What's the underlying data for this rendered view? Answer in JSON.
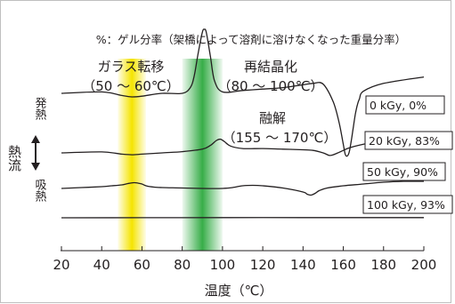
{
  "chart_data": {
    "type": "line",
    "title": "%：ゲル分率（架橋によって溶剤に溶けなくなった重量分率）",
    "xlabel": "温度（℃）",
    "ylabel": "熱流",
    "y_top_label": "発熱",
    "y_bottom_label": "吸熱",
    "xlim": [
      20,
      200
    ],
    "xticks": [
      "20",
      "40",
      "60",
      "80",
      "100",
      "120",
      "140",
      "160",
      "180",
      "200"
    ],
    "grid": false,
    "bands": [
      {
        "name": "ガラス転移",
        "range_label": "（50 ～ 60℃）",
        "x_range": [
          48,
          62
        ],
        "color": "#f5e400"
      },
      {
        "name": "再結晶化",
        "range_label": "（80 ～ 100℃）",
        "x_range": [
          80,
          100
        ],
        "color": "#37ad48"
      }
    ],
    "annotations": [
      {
        "text": "融解",
        "subtext": "（155 ～ 170℃）"
      }
    ],
    "series": [
      {
        "name": "0 kGy, 0%",
        "x": [
          20,
          40,
          50,
          55,
          60,
          70,
          80,
          84,
          86,
          88,
          90,
          91,
          92,
          94,
          96,
          100,
          110,
          120,
          130,
          140,
          145,
          150,
          155,
          158,
          160,
          161,
          162,
          163,
          164,
          165,
          166,
          167,
          168,
          170,
          180,
          200
        ],
        "y": [
          0,
          0.2,
          -0.3,
          -0.5,
          -0.4,
          0,
          0,
          0.8,
          2.5,
          5.8,
          8.6,
          9.0,
          8.5,
          5.2,
          1.8,
          0.2,
          0.4,
          0.6,
          0.8,
          1.2,
          1.4,
          1.3,
          -1.2,
          -4.2,
          -7.2,
          -8.6,
          -8.8,
          -8.2,
          -6.6,
          -4.7,
          -2.9,
          -1.6,
          -0.8,
          0.3,
          1.4,
          2.3
        ]
      },
      {
        "name": "20 kGy, 83%",
        "x": [
          20,
          40,
          50,
          55,
          60,
          70,
          80,
          90,
          94,
          97,
          99,
          101,
          104,
          110,
          120,
          130,
          140,
          145,
          150,
          153,
          155,
          158,
          160,
          162,
          165,
          170,
          180,
          190,
          200
        ],
        "y": [
          0,
          0.15,
          -0.2,
          -0.3,
          -0.2,
          0,
          0.2,
          0.6,
          1.2,
          2.0,
          2.2,
          1.8,
          1.1,
          0.7,
          0.7,
          0.6,
          0.5,
          0.4,
          0.0,
          -0.4,
          -0.3,
          0.1,
          0.4,
          0.7,
          1.0,
          1.4,
          2.0,
          2.4,
          2.7
        ]
      },
      {
        "name": "50 kGy, 90%",
        "x": [
          20,
          30,
          40,
          45,
          50,
          53,
          56,
          58,
          60,
          62,
          66,
          70,
          80,
          90,
          100,
          105,
          110,
          115,
          120,
          130,
          140,
          142,
          144,
          146,
          148,
          152,
          160,
          170,
          180,
          190,
          200
        ],
        "y": [
          0,
          0.2,
          0.4,
          0.6,
          0.8,
          1.1,
          1.3,
          1.2,
          1.0,
          0.6,
          0.3,
          0.2,
          0.1,
          0.0,
          0.0,
          0.2,
          0.6,
          0.7,
          0.6,
          0.1,
          -0.8,
          -1.3,
          -1.5,
          -1.1,
          -0.5,
          0.1,
          0.6,
          1.0,
          1.4,
          1.6,
          1.6
        ]
      },
      {
        "name": "100 kGy, 93%",
        "x": [
          20,
          60,
          100,
          140,
          180,
          200
        ],
        "y": [
          0,
          0.02,
          0.05,
          0.05,
          0.05,
          0.05
        ]
      }
    ]
  }
}
